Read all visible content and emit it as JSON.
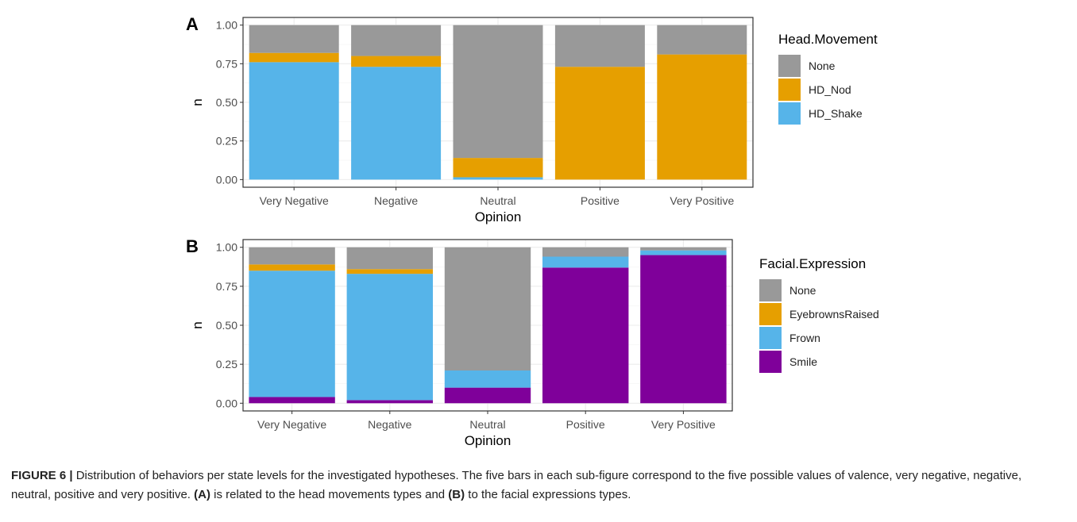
{
  "chart_data": [
    {
      "type": "bar",
      "stacked": true,
      "panel_label": "A",
      "xlabel": "Opinion",
      "ylabel": "n",
      "ylim": [
        0,
        1
      ],
      "yticks": [
        "0.00",
        "0.25",
        "0.50",
        "0.75",
        "1.00"
      ],
      "grid": true,
      "legend_position": "right",
      "legend_title": "Head.Movement",
      "categories": [
        "Very Negative",
        "Negative",
        "Neutral",
        "Positive",
        "Very Positive"
      ],
      "series": [
        {
          "name": "HD_Shake",
          "color": "#56B4E9",
          "values": [
            0.76,
            0.73,
            0.015,
            0.0,
            0.0
          ]
        },
        {
          "name": "HD_Nod",
          "color": "#E69F00",
          "values": [
            0.06,
            0.07,
            0.125,
            0.73,
            0.81
          ]
        },
        {
          "name": "None",
          "color": "#999999",
          "values": [
            0.18,
            0.2,
            0.86,
            0.27,
            0.19
          ]
        }
      ],
      "legend_order": [
        "None",
        "HD_Nod",
        "HD_Shake"
      ]
    },
    {
      "type": "bar",
      "stacked": true,
      "panel_label": "B",
      "xlabel": "Opinion",
      "ylabel": "n",
      "ylim": [
        0,
        1
      ],
      "yticks": [
        "0.00",
        "0.25",
        "0.50",
        "0.75",
        "1.00"
      ],
      "grid": true,
      "legend_position": "right",
      "legend_title": "Facial.Expression",
      "categories": [
        "Very Negative",
        "Negative",
        "Neutral",
        "Positive",
        "Very Positive"
      ],
      "series": [
        {
          "name": "Smile",
          "color": "#7F009A",
          "values": [
            0.04,
            0.02,
            0.1,
            0.87,
            0.95
          ]
        },
        {
          "name": "Frown",
          "color": "#56B4E9",
          "values": [
            0.81,
            0.81,
            0.11,
            0.07,
            0.03
          ]
        },
        {
          "name": "EyebrownsRaised",
          "color": "#E69F00",
          "values": [
            0.04,
            0.03,
            0.0,
            0.0,
            0.0
          ]
        },
        {
          "name": "None",
          "color": "#999999",
          "values": [
            0.11,
            0.14,
            0.79,
            0.06,
            0.02
          ]
        }
      ],
      "legend_order": [
        "None",
        "EyebrownsRaised",
        "Frown",
        "Smile"
      ]
    }
  ],
  "caption": {
    "label": "FIGURE 6 |",
    "text_1": " Distribution of behaviors per state levels for the investigated hypotheses. The five bars in each sub-figure correspond to the five possible values of valence, very negative, negative, neutral, positive and very positive. ",
    "ref_a": "(A)",
    "text_2": " is related to the head movements types and ",
    "ref_b": "(B)",
    "text_3": " to the facial expressions types."
  }
}
